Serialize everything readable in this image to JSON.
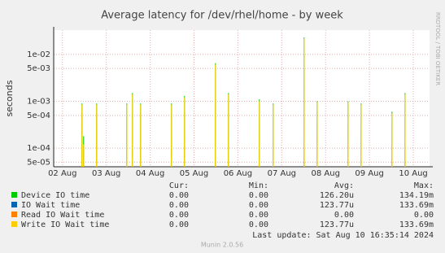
{
  "chart_data": {
    "type": "line",
    "title": "Average latency for /dev/rhel/home - by week",
    "ylabel": "seconds",
    "side_note": "RRDTOOL / TOBI OETIKER",
    "log_y": true,
    "grid": true,
    "xlim": [
      1.8,
      10.37
    ],
    "xticks": [
      {
        "value": 2,
        "label": "02 Aug"
      },
      {
        "value": 3,
        "label": "03 Aug"
      },
      {
        "value": 4,
        "label": "04 Aug"
      },
      {
        "value": 5,
        "label": "05 Aug"
      },
      {
        "value": 6,
        "label": "06 Aug"
      },
      {
        "value": 7,
        "label": "07 Aug"
      },
      {
        "value": 8,
        "label": "08 Aug"
      },
      {
        "value": 9,
        "label": "09 Aug"
      },
      {
        "value": 10,
        "label": "10 Aug"
      }
    ],
    "ylim": [
      4e-05,
      0.033
    ],
    "yticks": [
      {
        "value": 5e-05,
        "label": "5e-05"
      },
      {
        "value": 0.0001,
        "label": "1e-04"
      },
      {
        "value": 0.0005,
        "label": "5e-04"
      },
      {
        "value": 0.001,
        "label": "1e-03"
      },
      {
        "value": 0.005,
        "label": "5e-03"
      },
      {
        "value": 0.01,
        "label": "1e-02"
      }
    ],
    "x": [
      2.44,
      2.445,
      2.45,
      2.477,
      2.482,
      2.487,
      2.774,
      2.779,
      2.784,
      3.461,
      3.466,
      3.471,
      3.591,
      3.596,
      3.601,
      3.776,
      3.781,
      3.786,
      4.481,
      4.486,
      4.491,
      4.778,
      4.783,
      4.788,
      5.483,
      5.488,
      5.493,
      5.78,
      5.785,
      5.79,
      6.485,
      6.49,
      6.495,
      6.8,
      6.805,
      6.81,
      7.505,
      7.51,
      7.515,
      7.802,
      7.807,
      7.812,
      8.507,
      8.512,
      8.517,
      8.804,
      8.809,
      8.814,
      9.509,
      9.514,
      9.519,
      9.806,
      9.811,
      9.816
    ],
    "columns": [
      "Cur:",
      "Min:",
      "Avg:",
      "Max:"
    ],
    "series": [
      {
        "name": "Device IO time",
        "color": "#00cc00",
        "cur": "0.00",
        "min": "0.00",
        "avg": "126.20u",
        "max": "134.19m",
        "values": [
          1e-05,
          0.0009,
          1e-05,
          1e-05,
          0.00018,
          1e-05,
          1e-05,
          0.0009,
          1e-05,
          1e-05,
          0.0009,
          1e-05,
          1e-05,
          0.0015,
          1e-05,
          1e-05,
          0.0009,
          1e-05,
          1e-05,
          0.0009,
          1e-05,
          1e-05,
          0.0013,
          1e-05,
          1e-05,
          0.0065,
          1e-05,
          1e-05,
          0.0015,
          1e-05,
          1e-05,
          0.0011,
          1e-05,
          1e-05,
          0.0009,
          1e-05,
          1e-05,
          0.023,
          1e-05,
          1e-05,
          0.001,
          1e-05,
          1e-05,
          0.001,
          1e-05,
          1e-05,
          0.0009,
          1e-05,
          1e-05,
          0.0006,
          1e-05,
          1e-05,
          0.0015,
          1e-05
        ]
      },
      {
        "name": "IO Wait time",
        "color": "#0066b3",
        "cur": "0.00",
        "min": "0.00",
        "avg": "123.77u",
        "max": "133.69m"
      },
      {
        "name": "Read IO Wait time",
        "color": "#ff8000",
        "cur": "0.00",
        "min": "0.00",
        "avg": "0.00",
        "max": "0.00"
      },
      {
        "name": "Write IO Wait time",
        "color": "#ffcc00",
        "cur": "0.00",
        "min": "0.00",
        "avg": "123.77u",
        "max": "133.69m",
        "values": [
          1e-05,
          0.00085,
          1e-05,
          1e-05,
          0.00012,
          1e-05,
          1e-05,
          0.00085,
          1e-05,
          1e-05,
          0.00085,
          1e-05,
          1e-05,
          0.0014,
          1e-05,
          1e-05,
          0.00085,
          1e-05,
          1e-05,
          0.00085,
          1e-05,
          1e-05,
          0.0012,
          1e-05,
          1e-05,
          0.006,
          1e-05,
          1e-05,
          0.0014,
          1e-05,
          1e-05,
          0.001,
          1e-05,
          1e-05,
          0.00085,
          1e-05,
          1e-05,
          0.022,
          1e-05,
          1e-05,
          0.00095,
          1e-05,
          1e-05,
          0.00095,
          1e-05,
          1e-05,
          0.00085,
          1e-05,
          1e-05,
          0.00055,
          1e-05,
          1e-05,
          0.0014,
          1e-05
        ]
      }
    ],
    "last_update": "Last update: Sat Aug 10 16:35:14 2024",
    "footer": "Munin 2.0.56"
  }
}
